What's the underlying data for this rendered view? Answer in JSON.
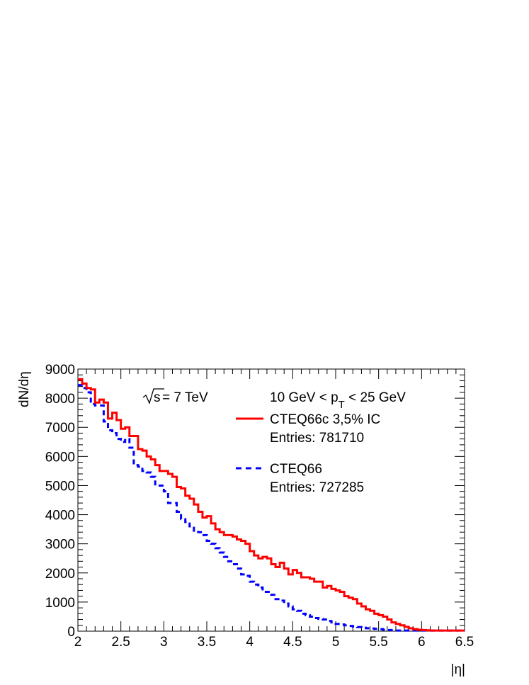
{
  "chart_data": {
    "type": "line",
    "step": true,
    "xlabel": "|η|",
    "ylabel": "dN/dη",
    "xlim": [
      2,
      6.5
    ],
    "ylim": [
      0,
      9000
    ],
    "x_ticks": [
      2,
      2.5,
      3,
      3.5,
      4,
      4.5,
      5,
      5.5,
      6,
      6.5
    ],
    "x_tick_labels": [
      "2",
      "2.5",
      "3",
      "3.5",
      "4",
      "4.5",
      "5",
      "5.5",
      "6",
      "6.5"
    ],
    "y_ticks": [
      0,
      1000,
      2000,
      3000,
      4000,
      5000,
      6000,
      7000,
      8000,
      9000
    ],
    "y_tick_labels": [
      "0",
      "1000",
      "2000",
      "3000",
      "4000",
      "5000",
      "6000",
      "7000",
      "8000",
      "9000"
    ],
    "bin_width": 0.05,
    "grid": false,
    "annotations": {
      "sqrt_s": "s",
      "energy": "= 7 TeV",
      "pt_range": {
        "prefix": "10 GeV < p",
        "subscript": "T",
        "suffix": " < 25 GeV"
      }
    },
    "legend": {
      "position": "top-right"
    },
    "series": [
      {
        "name": "CTEQ66c 3,5% IC",
        "entries_label": "Entries: 781710",
        "color": "#ff0000",
        "style": "solid",
        "bin_edges": [
          2.0,
          2.05,
          2.1,
          2.15,
          2.2,
          2.25,
          2.3,
          2.35,
          2.4,
          2.45,
          2.5,
          2.55,
          2.6,
          2.65,
          2.7,
          2.75,
          2.8,
          2.85,
          2.9,
          2.95,
          3.0,
          3.05,
          3.1,
          3.15,
          3.2,
          3.25,
          3.3,
          3.35,
          3.4,
          3.45,
          3.5,
          3.55,
          3.6,
          3.65,
          3.7,
          3.75,
          3.8,
          3.85,
          3.9,
          3.95,
          4.0,
          4.05,
          4.1,
          4.15,
          4.2,
          4.25,
          4.3,
          4.35,
          4.4,
          4.45,
          4.5,
          4.55,
          4.6,
          4.65,
          4.7,
          4.75,
          4.8,
          4.85,
          4.9,
          4.95,
          5.0,
          5.05,
          5.1,
          5.15,
          5.2,
          5.25,
          5.3,
          5.35,
          5.4,
          5.45,
          5.5,
          5.55,
          5.6,
          5.65,
          5.7,
          5.75,
          5.8,
          5.85,
          5.9,
          5.95,
          6.0,
          6.05,
          6.1,
          6.15,
          6.2,
          6.25,
          6.3,
          6.35,
          6.4,
          6.45
        ],
        "values": [
          8650,
          8500,
          8350,
          8300,
          7850,
          7950,
          7850,
          7300,
          7500,
          7250,
          6950,
          7000,
          6700,
          6700,
          6250,
          6200,
          6000,
          5900,
          5700,
          5500,
          5500,
          5400,
          5300,
          4950,
          4900,
          4650,
          4550,
          4350,
          4100,
          3900,
          3950,
          3700,
          3500,
          3400,
          3300,
          3300,
          3250,
          3150,
          3100,
          3000,
          2750,
          2600,
          2500,
          2550,
          2500,
          2300,
          2200,
          2350,
          2150,
          1950,
          2100,
          2000,
          1850,
          1850,
          1800,
          1700,
          1700,
          1500,
          1550,
          1450,
          1400,
          1350,
          1200,
          1150,
          1100,
          950,
          850,
          750,
          700,
          600,
          550,
          500,
          400,
          300,
          250,
          200,
          150,
          100,
          70,
          50,
          40,
          30,
          20,
          20,
          20,
          20,
          20,
          20,
          20,
          20
        ]
      },
      {
        "name": "CTEQ66",
        "entries_label": "Entries: 727285",
        "color": "#0000ff",
        "style": "dashed",
        "bin_edges": [
          2.0,
          2.05,
          2.1,
          2.15,
          2.2,
          2.25,
          2.3,
          2.35,
          2.4,
          2.45,
          2.5,
          2.55,
          2.6,
          2.65,
          2.7,
          2.75,
          2.8,
          2.85,
          2.9,
          2.95,
          3.0,
          3.05,
          3.1,
          3.15,
          3.2,
          3.25,
          3.3,
          3.35,
          3.4,
          3.45,
          3.5,
          3.55,
          3.6,
          3.65,
          3.7,
          3.75,
          3.8,
          3.85,
          3.9,
          3.95,
          4.0,
          4.05,
          4.1,
          4.15,
          4.2,
          4.25,
          4.3,
          4.35,
          4.4,
          4.45,
          4.5,
          4.55,
          4.6,
          4.65,
          4.7,
          4.75,
          4.8,
          4.85,
          4.9,
          4.95,
          5.0,
          5.05,
          5.1,
          5.15,
          5.2,
          5.25,
          5.3,
          5.35,
          5.4,
          5.45,
          5.5,
          5.55,
          5.6,
          5.65,
          5.7,
          5.75,
          5.8,
          5.85,
          5.9,
          5.95,
          6.0,
          6.05,
          6.1,
          6.15,
          6.2,
          6.25,
          6.3,
          6.35,
          6.4,
          6.45
        ],
        "values": [
          8450,
          8350,
          8200,
          7800,
          7750,
          7750,
          7200,
          6900,
          6800,
          6600,
          6500,
          6600,
          6300,
          5700,
          5650,
          5500,
          5450,
          5300,
          5000,
          5000,
          4800,
          4400,
          4400,
          4100,
          3850,
          3750,
          3600,
          3450,
          3400,
          3300,
          3100,
          3000,
          2850,
          2700,
          2550,
          2400,
          2300,
          2150,
          1950,
          1900,
          1700,
          1600,
          1500,
          1350,
          1350,
          1250,
          1100,
          1050,
          950,
          850,
          750,
          700,
          600,
          550,
          500,
          450,
          420,
          400,
          350,
          300,
          250,
          230,
          200,
          180,
          160,
          140,
          120,
          100,
          90,
          80,
          70,
          50,
          40,
          30,
          20,
          20,
          20,
          20,
          20,
          20,
          20,
          20,
          20,
          20,
          20,
          20,
          20,
          20,
          20,
          20
        ]
      }
    ]
  }
}
